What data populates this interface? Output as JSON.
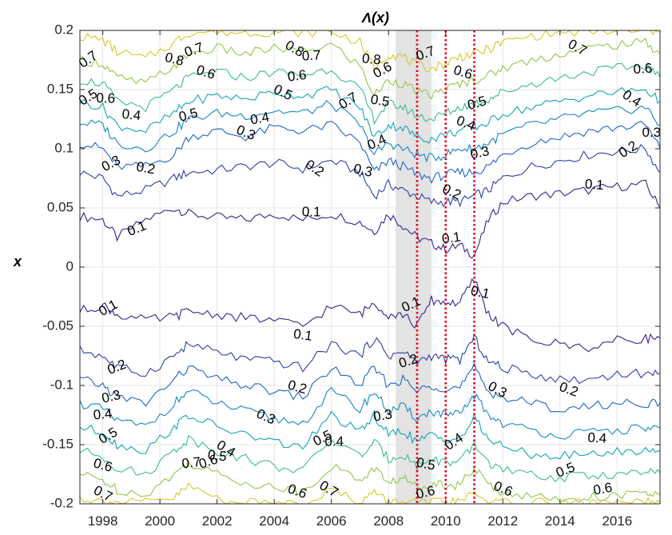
{
  "chart_data": {
    "type": "line",
    "title": "Λ(x)",
    "ylabel": "x",
    "xlabel": "",
    "xlim": [
      1997.2,
      2017.5
    ],
    "ylim": [
      -0.2,
      0.2
    ],
    "grid": true,
    "xticks": [
      1998,
      2000,
      2002,
      2004,
      2006,
      2008,
      2010,
      2012,
      2014,
      2016
    ],
    "yticks": [
      -0.2,
      -0.15,
      -0.1,
      -0.05,
      0,
      0.05,
      0.1,
      0.15,
      0.2
    ],
    "xtick_labels": [
      "1998",
      "2000",
      "2002",
      "2004",
      "2006",
      "2008",
      "2010",
      "2012",
      "2014",
      "2016"
    ],
    "ytick_labels": [
      "-0.2",
      "-0.15",
      "-0.1",
      "-0.05",
      "0",
      "0.05",
      "0.1",
      "0.15",
      "0.2"
    ],
    "shaded_regions": [
      {
        "x0": 2008.25,
        "x1": 2009.5,
        "color": "#e3e3e3"
      }
    ],
    "vertical_lines": [
      {
        "x": 2009.0,
        "color": "#e8001c",
        "style": "dotted"
      },
      {
        "x": 2010.0,
        "color": "#e8001c",
        "style": "dotted"
      },
      {
        "x": 2011.0,
        "color": "#e8001c",
        "style": "dotted"
      }
    ],
    "x": [
      1997.2,
      1998.0,
      1998.5,
      1999.5,
      2000.5,
      2001.0,
      2002.0,
      2003.0,
      2004.0,
      2005.0,
      2006.0,
      2007.0,
      2007.5,
      2008.0,
      2008.5,
      2009.0,
      2009.5,
      2010.0,
      2010.5,
      2011.0,
      2011.5,
      2012.0,
      2013.0,
      2014.0,
      2015.0,
      2016.0,
      2017.0,
      2017.5
    ],
    "series": [
      {
        "level": 0.1,
        "side": "upper",
        "color": "#3b1f8f",
        "values": [
          0.043,
          0.04,
          0.025,
          0.04,
          0.05,
          0.045,
          0.042,
          0.04,
          0.045,
          0.04,
          0.045,
          0.038,
          0.03,
          0.045,
          0.035,
          0.025,
          0.02,
          0.015,
          0.018,
          0.01,
          0.04,
          0.055,
          0.06,
          0.062,
          0.065,
          0.068,
          0.07,
          0.05
        ]
      },
      {
        "level": 0.2,
        "side": "upper",
        "color": "#2c40a8",
        "values": [
          0.08,
          0.075,
          0.06,
          0.065,
          0.075,
          0.08,
          0.082,
          0.085,
          0.088,
          0.083,
          0.09,
          0.08,
          0.06,
          0.07,
          0.065,
          0.06,
          0.055,
          0.055,
          0.055,
          0.06,
          0.065,
          0.075,
          0.085,
          0.09,
          0.095,
          0.098,
          0.1,
          0.08
        ]
      },
      {
        "level": 0.3,
        "side": "upper",
        "color": "#2063c8",
        "values": [
          0.105,
          0.1,
          0.085,
          0.085,
          0.095,
          0.11,
          0.115,
          0.11,
          0.118,
          0.115,
          0.12,
          0.105,
          0.08,
          0.09,
          0.085,
          0.078,
          0.075,
          0.078,
          0.08,
          0.08,
          0.085,
          0.095,
          0.105,
          0.11,
          0.115,
          0.118,
          0.12,
          0.1
        ]
      },
      {
        "level": 0.4,
        "side": "upper",
        "color": "#1786c8",
        "values": [
          0.122,
          0.12,
          0.105,
          0.1,
          0.115,
          0.125,
          0.13,
          0.128,
          0.132,
          0.13,
          0.138,
          0.12,
          0.095,
          0.105,
          0.1,
          0.095,
          0.092,
          0.095,
          0.1,
          0.1,
          0.105,
          0.112,
          0.12,
          0.125,
          0.13,
          0.132,
          0.135,
          0.12
        ]
      },
      {
        "level": 0.5,
        "side": "upper",
        "color": "#13a3b8",
        "values": [
          0.14,
          0.135,
          0.12,
          0.115,
          0.13,
          0.14,
          0.145,
          0.142,
          0.148,
          0.145,
          0.15,
          0.135,
          0.11,
          0.12,
          0.118,
          0.11,
          0.108,
          0.112,
          0.115,
          0.118,
          0.122,
          0.13,
          0.135,
          0.14,
          0.145,
          0.148,
          0.15,
          0.14
        ]
      },
      {
        "level": 0.6,
        "side": "upper",
        "color": "#3bbb95",
        "values": [
          0.158,
          0.155,
          0.14,
          0.135,
          0.15,
          0.16,
          0.165,
          0.16,
          0.165,
          0.162,
          0.168,
          0.15,
          0.125,
          0.138,
          0.135,
          0.128,
          0.125,
          0.13,
          0.135,
          0.138,
          0.142,
          0.148,
          0.155,
          0.16,
          0.165,
          0.168,
          0.17,
          0.16
        ]
      },
      {
        "level": 0.7,
        "side": "upper",
        "color": "#8ec84a",
        "values": [
          0.175,
          0.172,
          0.16,
          0.155,
          0.17,
          0.18,
          0.185,
          0.18,
          0.185,
          0.182,
          0.188,
          0.17,
          0.145,
          0.158,
          0.155,
          0.148,
          0.145,
          0.15,
          0.155,
          0.158,
          0.162,
          0.168,
          0.175,
          0.18,
          0.185,
          0.188,
          0.19,
          0.18
        ]
      },
      {
        "level": 0.8,
        "side": "upper",
        "color": "#d9c629",
        "values": [
          0.195,
          0.192,
          0.182,
          0.176,
          0.19,
          0.198,
          0.199,
          0.198,
          0.199,
          0.198,
          0.199,
          0.19,
          0.168,
          0.18,
          0.178,
          0.17,
          0.168,
          0.172,
          0.178,
          0.18,
          0.184,
          0.19,
          0.195,
          0.198,
          0.199,
          0.199,
          0.199,
          0.199
        ]
      },
      {
        "level": 0.1,
        "side": "lower",
        "color": "#3b1f8f",
        "values": [
          -0.037,
          -0.032,
          -0.04,
          -0.045,
          -0.042,
          -0.037,
          -0.04,
          -0.043,
          -0.045,
          -0.05,
          -0.033,
          -0.04,
          -0.03,
          -0.04,
          -0.04,
          -0.05,
          -0.028,
          -0.03,
          -0.03,
          -0.01,
          -0.04,
          -0.05,
          -0.062,
          -0.065,
          -0.068,
          -0.062,
          -0.06,
          -0.06
        ]
      },
      {
        "level": 0.2,
        "side": "lower",
        "color": "#2c40a8",
        "values": [
          -0.07,
          -0.075,
          -0.085,
          -0.09,
          -0.075,
          -0.065,
          -0.072,
          -0.078,
          -0.08,
          -0.085,
          -0.065,
          -0.075,
          -0.06,
          -0.075,
          -0.072,
          -0.08,
          -0.075,
          -0.078,
          -0.078,
          -0.06,
          -0.08,
          -0.085,
          -0.09,
          -0.095,
          -0.095,
          -0.09,
          -0.09,
          -0.09
        ]
      },
      {
        "level": 0.3,
        "side": "lower",
        "color": "#2063c8",
        "values": [
          -0.095,
          -0.1,
          -0.11,
          -0.115,
          -0.095,
          -0.085,
          -0.095,
          -0.1,
          -0.105,
          -0.11,
          -0.085,
          -0.1,
          -0.085,
          -0.1,
          -0.095,
          -0.105,
          -0.1,
          -0.102,
          -0.102,
          -0.085,
          -0.105,
          -0.11,
          -0.115,
          -0.12,
          -0.118,
          -0.115,
          -0.115,
          -0.115
        ]
      },
      {
        "level": 0.4,
        "side": "lower",
        "color": "#1786c8",
        "values": [
          -0.115,
          -0.12,
          -0.13,
          -0.135,
          -0.115,
          -0.105,
          -0.115,
          -0.122,
          -0.128,
          -0.132,
          -0.105,
          -0.12,
          -0.105,
          -0.122,
          -0.118,
          -0.128,
          -0.122,
          -0.125,
          -0.125,
          -0.108,
          -0.125,
          -0.132,
          -0.138,
          -0.142,
          -0.14,
          -0.138,
          -0.136,
          -0.136
        ]
      },
      {
        "level": 0.5,
        "side": "lower",
        "color": "#13a3b8",
        "values": [
          -0.135,
          -0.14,
          -0.15,
          -0.155,
          -0.135,
          -0.125,
          -0.135,
          -0.142,
          -0.148,
          -0.152,
          -0.125,
          -0.14,
          -0.125,
          -0.142,
          -0.138,
          -0.148,
          -0.142,
          -0.145,
          -0.145,
          -0.128,
          -0.145,
          -0.152,
          -0.158,
          -0.16,
          -0.158,
          -0.156,
          -0.155,
          -0.155
        ]
      },
      {
        "level": 0.6,
        "side": "lower",
        "color": "#3bbb95",
        "values": [
          -0.155,
          -0.16,
          -0.17,
          -0.175,
          -0.155,
          -0.145,
          -0.155,
          -0.162,
          -0.168,
          -0.172,
          -0.145,
          -0.16,
          -0.148,
          -0.162,
          -0.158,
          -0.168,
          -0.162,
          -0.165,
          -0.165,
          -0.15,
          -0.165,
          -0.172,
          -0.176,
          -0.178,
          -0.176,
          -0.175,
          -0.174,
          -0.174
        ]
      },
      {
        "level": 0.7,
        "side": "lower",
        "color": "#8ec84a",
        "values": [
          -0.175,
          -0.18,
          -0.188,
          -0.192,
          -0.175,
          -0.165,
          -0.175,
          -0.182,
          -0.186,
          -0.19,
          -0.168,
          -0.18,
          -0.17,
          -0.182,
          -0.178,
          -0.186,
          -0.182,
          -0.184,
          -0.184,
          -0.17,
          -0.184,
          -0.19,
          -0.194,
          -0.196,
          -0.194,
          -0.193,
          -0.192,
          -0.192
        ]
      },
      {
        "level": 0.8,
        "side": "lower",
        "color": "#d9c629",
        "values": [
          -0.195,
          -0.198,
          -0.199,
          -0.199,
          -0.195,
          -0.185,
          -0.195,
          -0.199,
          -0.199,
          -0.199,
          -0.188,
          -0.198,
          -0.19,
          -0.199,
          -0.198,
          -0.199,
          -0.199,
          -0.199,
          -0.199,
          -0.19,
          -0.199,
          -0.199,
          -0.199,
          -0.199,
          -0.199,
          -0.199,
          -0.199,
          -0.199
        ]
      }
    ],
    "contour_labels": [
      {
        "text": "0.7",
        "x": 1997.5,
        "y": 0.175
      },
      {
        "text": "0.6",
        "x": 1998.1,
        "y": 0.142
      },
      {
        "text": "0.5",
        "x": 1997.5,
        "y": 0.143
      },
      {
        "text": "0.4",
        "x": 1999.0,
        "y": 0.128
      },
      {
        "text": "0.3",
        "x": 1998.3,
        "y": 0.087
      },
      {
        "text": "0.2",
        "x": 1999.5,
        "y": 0.083
      },
      {
        "text": "0.1",
        "x": 1999.2,
        "y": 0.032
      },
      {
        "text": "0.8",
        "x": 2000.5,
        "y": 0.175
      },
      {
        "text": "0.7",
        "x": 2001.2,
        "y": 0.183
      },
      {
        "text": "0.6",
        "x": 2001.6,
        "y": 0.164
      },
      {
        "text": "0.5",
        "x": 2001.0,
        "y": 0.128
      },
      {
        "text": "0.3",
        "x": 2003.0,
        "y": 0.113
      },
      {
        "text": "0.4",
        "x": 2003.5,
        "y": 0.125
      },
      {
        "text": "0.5",
        "x": 2004.3,
        "y": 0.147
      },
      {
        "text": "0.6",
        "x": 2004.8,
        "y": 0.161
      },
      {
        "text": "0.8",
        "x": 2004.7,
        "y": 0.184
      },
      {
        "text": "0.7",
        "x": 2005.3,
        "y": 0.178
      },
      {
        "text": "0.2",
        "x": 2005.4,
        "y": 0.083
      },
      {
        "text": "0.1",
        "x": 2005.3,
        "y": 0.046
      },
      {
        "text": "0.7",
        "x": 2006.6,
        "y": 0.14
      },
      {
        "text": "0.8",
        "x": 2007.4,
        "y": 0.175
      },
      {
        "text": "0.6",
        "x": 2007.8,
        "y": 0.166
      },
      {
        "text": "0.5",
        "x": 2007.7,
        "y": 0.14
      },
      {
        "text": "0.4",
        "x": 2007.6,
        "y": 0.105
      },
      {
        "text": "0.3",
        "x": 2007.1,
        "y": 0.081
      },
      {
        "text": "0.7",
        "x": 2009.3,
        "y": 0.18
      },
      {
        "text": "0.6",
        "x": 2010.6,
        "y": 0.164
      },
      {
        "text": "0.5",
        "x": 2011.1,
        "y": 0.138
      },
      {
        "text": "0.4",
        "x": 2010.7,
        "y": 0.121
      },
      {
        "text": "0.3",
        "x": 2011.2,
        "y": 0.096
      },
      {
        "text": "0.2",
        "x": 2010.2,
        "y": 0.063
      },
      {
        "text": "0.1",
        "x": 2010.2,
        "y": 0.024
      },
      {
        "text": "0.7",
        "x": 2014.6,
        "y": 0.185
      },
      {
        "text": "0.6",
        "x": 2016.9,
        "y": 0.167
      },
      {
        "text": "0.4",
        "x": 2016.5,
        "y": 0.142
      },
      {
        "text": "0.3",
        "x": 2017.2,
        "y": 0.113
      },
      {
        "text": "0.2",
        "x": 2016.4,
        "y": 0.099
      },
      {
        "text": "0.1",
        "x": 2015.2,
        "y": 0.069
      },
      {
        "text": "0.1",
        "x": 1998.2,
        "y": -0.035
      },
      {
        "text": "0.1",
        "x": 2005.0,
        "y": -0.058
      },
      {
        "text": "0.1",
        "x": 2008.8,
        "y": -0.032
      },
      {
        "text": "0.1",
        "x": 2011.2,
        "y": -0.022
      },
      {
        "text": "0.2",
        "x": 1998.5,
        "y": -0.085
      },
      {
        "text": "0.2",
        "x": 2004.8,
        "y": -0.102
      },
      {
        "text": "0.2",
        "x": 2008.7,
        "y": -0.08
      },
      {
        "text": "0.2",
        "x": 2014.3,
        "y": -0.104
      },
      {
        "text": "0.3",
        "x": 1998.3,
        "y": -0.11
      },
      {
        "text": "0.3",
        "x": 2003.7,
        "y": -0.127
      },
      {
        "text": "0.3",
        "x": 2007.8,
        "y": -0.126
      },
      {
        "text": "0.3",
        "x": 2011.8,
        "y": -0.104
      },
      {
        "text": "0.4",
        "x": 1998.0,
        "y": -0.125
      },
      {
        "text": "0.4",
        "x": 2002.3,
        "y": -0.154
      },
      {
        "text": "0.4",
        "x": 2006.1,
        "y": -0.148
      },
      {
        "text": "0.4",
        "x": 2010.3,
        "y": -0.148
      },
      {
        "text": "0.4",
        "x": 2015.3,
        "y": -0.145
      },
      {
        "text": "0.5",
        "x": 1998.2,
        "y": -0.143
      },
      {
        "text": "0.5",
        "x": 2002.0,
        "y": -0.16
      },
      {
        "text": "0.5",
        "x": 2005.7,
        "y": -0.145
      },
      {
        "text": "0.5",
        "x": 2009.3,
        "y": -0.167
      },
      {
        "text": "0.5",
        "x": 2014.2,
        "y": -0.172
      },
      {
        "text": "0.6",
        "x": 1998.0,
        "y": -0.168
      },
      {
        "text": "0.6",
        "x": 2001.7,
        "y": -0.165
      },
      {
        "text": "0.6",
        "x": 2004.8,
        "y": -0.19
      },
      {
        "text": "0.6",
        "x": 2009.3,
        "y": -0.191
      },
      {
        "text": "0.6",
        "x": 2012.0,
        "y": -0.188
      },
      {
        "text": "0.6",
        "x": 2015.5,
        "y": -0.188
      },
      {
        "text": "0.7",
        "x": 1998.0,
        "y": -0.192
      },
      {
        "text": "0.7",
        "x": 2001.1,
        "y": -0.166
      },
      {
        "text": "0.7",
        "x": 2005.9,
        "y": -0.188
      }
    ]
  }
}
